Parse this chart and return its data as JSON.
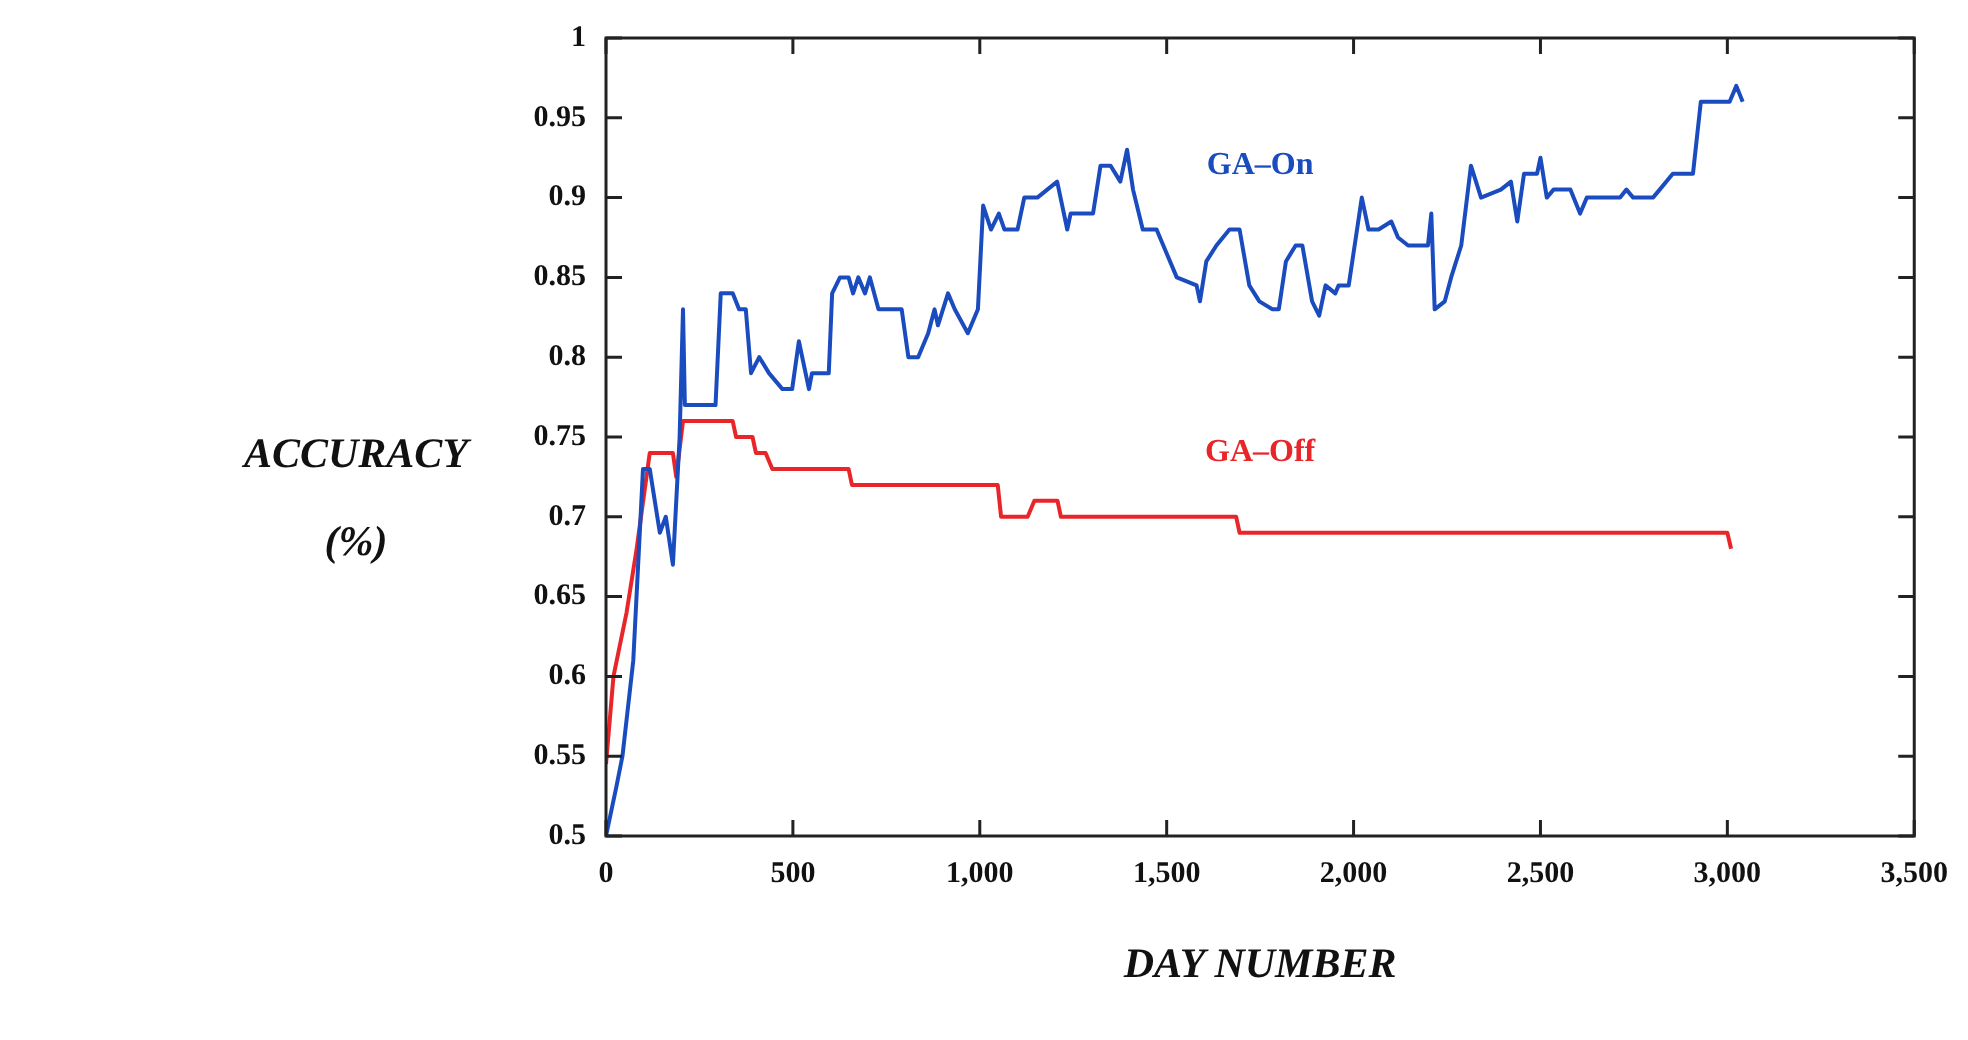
{
  "chart_data": {
    "type": "line",
    "xlabel": "DAY NUMBER",
    "ylabel": "ACCURACY\n(%)",
    "xlim": [
      0,
      3500
    ],
    "xticks": [
      0,
      500,
      {
        "value": 1000,
        "label": "1,000"
      },
      {
        "value": 1500,
        "label": "1,500"
      },
      {
        "value": 2000,
        "label": "2,000"
      },
      {
        "value": 2500,
        "label": "2,500"
      },
      {
        "value": 3000,
        "label": "3,000"
      },
      {
        "value": 3500,
        "label": "3,500"
      }
    ],
    "ylim": [
      0.5,
      1
    ],
    "yticks": [
      0.5,
      0.55,
      0.6,
      0.65,
      0.7,
      0.75,
      0.8,
      0.85,
      0.9,
      0.95,
      1
    ],
    "legend": false,
    "marker": "none",
    "line_style": "solid",
    "series": [
      {
        "name": "GA–On",
        "color": "#1a4cbf",
        "x": [
          0,
          27,
          44,
          73,
          99,
          117,
          144,
          160,
          179,
          197,
          206,
          211,
          293,
          307,
          339,
          356,
          374,
          388,
          410,
          436,
          472,
          498,
          516,
          543,
          551,
          596,
          605,
          626,
          649,
          661,
          675,
          693,
          706,
          729,
          791,
          809,
          835,
          862,
          879,
          888,
          915,
          933,
          968,
          995,
          1009,
          1030,
          1051,
          1066,
          1101,
          1119,
          1154,
          1207,
          1234,
          1243,
          1303,
          1323,
          1350,
          1376,
          1394,
          1410,
          1436,
          1473,
          1491,
          1527,
          1580,
          1589,
          1606,
          1633,
          1668,
          1695,
          1721,
          1748,
          1783,
          1800,
          1819,
          1845,
          1863,
          1889,
          1908,
          1925,
          1951,
          1960,
          1987,
          2022,
          2040,
          2067,
          2101,
          2119,
          2146,
          2199,
          2208,
          2217,
          2244,
          2261,
          2288,
          2314,
          2341,
          2394,
          2421,
          2438,
          2456,
          2491,
          2500,
          2517,
          2535,
          2580,
          2606,
          2624,
          2713,
          2730,
          2748,
          2801,
          2819,
          2854,
          2908,
          2929,
          3006,
          3024,
          3041
        ],
        "values": [
          0.5,
          0.53,
          0.55,
          0.61,
          0.73,
          0.73,
          0.69,
          0.7,
          0.67,
          0.75,
          0.83,
          0.77,
          0.77,
          0.84,
          0.84,
          0.83,
          0.83,
          0.79,
          0.8,
          0.79,
          0.78,
          0.78,
          0.81,
          0.78,
          0.79,
          0.79,
          0.84,
          0.85,
          0.85,
          0.84,
          0.85,
          0.84,
          0.85,
          0.83,
          0.83,
          0.8,
          0.8,
          0.815,
          0.83,
          0.82,
          0.84,
          0.83,
          0.815,
          0.83,
          0.895,
          0.88,
          0.89,
          0.88,
          0.88,
          0.9,
          0.9,
          0.91,
          0.88,
          0.89,
          0.89,
          0.92,
          0.92,
          0.91,
          0.93,
          0.905,
          0.88,
          0.88,
          0.87,
          0.85,
          0.845,
          0.835,
          0.86,
          0.87,
          0.88,
          0.88,
          0.845,
          0.835,
          0.83,
          0.83,
          0.86,
          0.87,
          0.87,
          0.835,
          0.826,
          0.845,
          0.84,
          0.845,
          0.845,
          0.9,
          0.88,
          0.88,
          0.885,
          0.875,
          0.87,
          0.87,
          0.89,
          0.83,
          0.835,
          0.85,
          0.87,
          0.92,
          0.9,
          0.905,
          0.91,
          0.885,
          0.915,
          0.915,
          0.925,
          0.9,
          0.905,
          0.905,
          0.89,
          0.9,
          0.9,
          0.905,
          0.9,
          0.9,
          0.905,
          0.915,
          0.915,
          0.96,
          0.96,
          0.97,
          0.96
        ]
      },
      {
        "name": "GA–Off",
        "color": "#e8262a",
        "x": [
          0,
          20,
          55,
          82,
          117,
          179,
          188,
          206,
          339,
          348,
          392,
          401,
          427,
          445,
          649,
          658,
          1048,
          1057,
          1128,
          1146,
          1208,
          1217,
          1686,
          1695,
          3000,
          3010
        ],
        "values": [
          0.545,
          0.6,
          0.64,
          0.68,
          0.74,
          0.74,
          0.725,
          0.76,
          0.76,
          0.75,
          0.75,
          0.74,
          0.74,
          0.73,
          0.73,
          0.72,
          0.72,
          0.7,
          0.7,
          0.71,
          0.71,
          0.7,
          0.7,
          0.69,
          0.69,
          0.68
        ]
      }
    ]
  }
}
